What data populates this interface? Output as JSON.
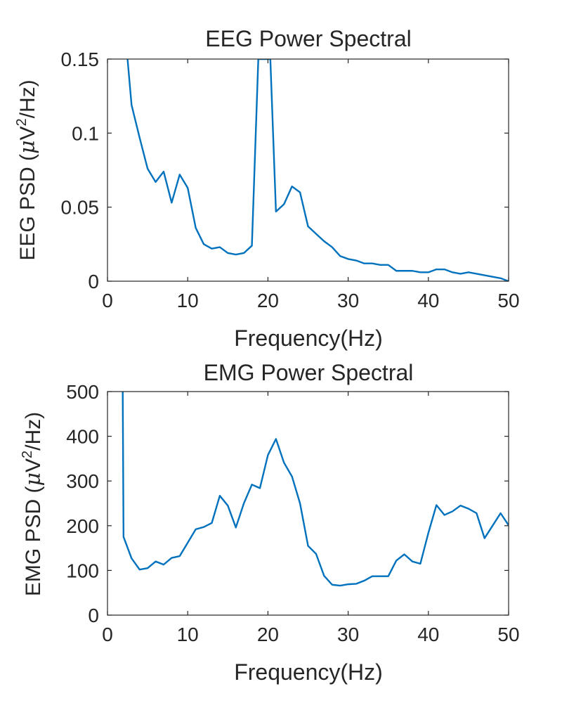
{
  "chart_data": [
    {
      "type": "line",
      "title": "EEG Power Spectral",
      "xlabel": "Frequency(Hz)",
      "ylabel_main": "EEG PSD (",
      "ylabel_mu": "μ",
      "ylabel_unit": "V",
      "ylabel_sup": "2",
      "ylabel_tail": "/Hz)",
      "xlim": [
        0,
        50
      ],
      "ylim": [
        0,
        0.15
      ],
      "xticks": [
        0,
        10,
        20,
        30,
        40,
        50
      ],
      "xtick_labels": [
        "0",
        "10",
        "20",
        "30",
        "40",
        "50"
      ],
      "yticks": [
        0,
        0.05,
        0.1,
        0.15
      ],
      "ytick_labels": [
        "0",
        "0.05",
        "0.1",
        "0.15"
      ],
      "grid": false,
      "line_color": "#0072BD",
      "series": [
        {
          "x": [
            2.5,
            3,
            4,
            5,
            6,
            7,
            8,
            9,
            10,
            11,
            12,
            13,
            14,
            15,
            16,
            17,
            18,
            18.8,
            20.3,
            21,
            22,
            23,
            24,
            25,
            26,
            27,
            28,
            29,
            30,
            31,
            32,
            33,
            34,
            35,
            36,
            37,
            38,
            39,
            40,
            41,
            42,
            43,
            44,
            45,
            46,
            47,
            48,
            49,
            50
          ],
          "y": [
            0.15,
            0.119,
            0.097,
            0.076,
            0.067,
            0.074,
            0.053,
            0.072,
            0.063,
            0.036,
            0.025,
            0.022,
            0.023,
            0.019,
            0.018,
            0.019,
            0.024,
            0.15,
            0.15,
            0.047,
            0.052,
            0.064,
            0.06,
            0.037,
            0.032,
            0.027,
            0.023,
            0.017,
            0.015,
            0.014,
            0.012,
            0.012,
            0.011,
            0.011,
            0.007,
            0.007,
            0.007,
            0.006,
            0.006,
            0.008,
            0.008,
            0.006,
            0.005,
            0.006,
            0.005,
            0.004,
            0.003,
            0.002,
            0.0
          ]
        }
      ]
    },
    {
      "type": "line",
      "title": "EMG Power Spectral",
      "xlabel": "Frequency(Hz)",
      "ylabel_main": "EMG PSD (",
      "ylabel_mu": "μ",
      "ylabel_unit": "V",
      "ylabel_sup": "2",
      "ylabel_tail": "/Hz)",
      "xlim": [
        0,
        50
      ],
      "ylim": [
        0,
        500
      ],
      "xticks": [
        0,
        10,
        20,
        30,
        40,
        50
      ],
      "xtick_labels": [
        "0",
        "10",
        "20",
        "30",
        "40",
        "50"
      ],
      "yticks": [
        0,
        100,
        200,
        300,
        400,
        500
      ],
      "ytick_labels": [
        "0",
        "100",
        "200",
        "300",
        "400",
        "500"
      ],
      "grid": false,
      "line_color": "#0072BD",
      "series": [
        {
          "x": [
            1.9,
            2,
            3,
            4,
            5,
            6,
            7,
            8,
            9,
            10,
            11,
            12,
            13,
            14,
            15,
            16,
            17,
            18,
            19,
            20,
            21,
            22,
            23,
            24,
            25,
            26,
            27,
            28,
            29,
            30,
            31,
            32,
            33,
            34,
            35,
            36,
            37,
            38,
            39,
            40,
            41,
            42,
            43,
            44,
            45,
            46,
            47,
            48,
            49,
            50
          ],
          "y": [
            500,
            175,
            127,
            102,
            105,
            120,
            113,
            128,
            132,
            162,
            192,
            197,
            206,
            267,
            245,
            196,
            250,
            292,
            284,
            358,
            394,
            341,
            310,
            250,
            155,
            137,
            88,
            68,
            66,
            69,
            70,
            77,
            87,
            87,
            87,
            122,
            136,
            120,
            115,
            184,
            246,
            224,
            232,
            245,
            238,
            228,
            172,
            200,
            228,
            201
          ]
        }
      ]
    }
  ]
}
